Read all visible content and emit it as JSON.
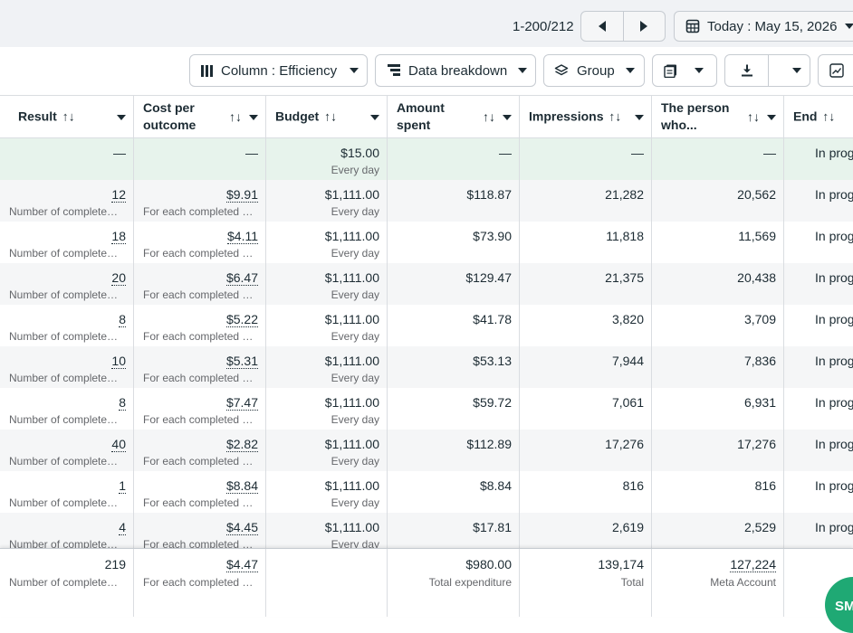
{
  "pager": {
    "range": "1-200/212"
  },
  "date": {
    "label": "Today : May 15, 2026"
  },
  "toolbar": {
    "columns_label": "Column : Efficiency",
    "breakdown_label": "Data breakdown",
    "group_label": "Group"
  },
  "columns": [
    {
      "title": "Result",
      "sort": "↑↓"
    },
    {
      "title": "Cost per outcome",
      "sort": "↑↓"
    },
    {
      "title": "Budget",
      "sort": "↑↓"
    },
    {
      "title": "Amount spent",
      "sort": "↑↓"
    },
    {
      "title": "Impressions",
      "sort": "↑↓"
    },
    {
      "title": "The person who...",
      "sort": "↑↓"
    },
    {
      "title": "End",
      "sort": "↑↓"
    }
  ],
  "rows": [
    {
      "result": "—",
      "result_sub": "",
      "cost": "—",
      "cost_sub": "",
      "budget": "$15.00",
      "budget_sub": "Every day",
      "spent": "—",
      "impressions": "—",
      "reach": "—",
      "end": "In progress",
      "highlight": true
    },
    {
      "result": "12",
      "result_sub": "Number of completed registrations",
      "cost": "$9.91",
      "cost_sub": "For each completed registration",
      "budget": "$1,111.00",
      "budget_sub": "Every day",
      "spent": "$118.87",
      "impressions": "21,282",
      "reach": "20,562",
      "end": "In progress"
    },
    {
      "result": "18",
      "result_sub": "Number of completed registrations",
      "cost": "$4.11",
      "cost_sub": "For each completed registration",
      "budget": "$1,111.00",
      "budget_sub": "Every day",
      "spent": "$73.90",
      "impressions": "11,818",
      "reach": "11,569",
      "end": "In progress"
    },
    {
      "result": "20",
      "result_sub": "Number of completed registrations",
      "cost": "$6.47",
      "cost_sub": "For each completed registration",
      "budget": "$1,111.00",
      "budget_sub": "Every day",
      "spent": "$129.47",
      "impressions": "21,375",
      "reach": "20,438",
      "end": "In progress"
    },
    {
      "result": "8",
      "result_sub": "Number of completed registrations",
      "cost": "$5.22",
      "cost_sub": "For each completed registration",
      "budget": "$1,111.00",
      "budget_sub": "Every day",
      "spent": "$41.78",
      "impressions": "3,820",
      "reach": "3,709",
      "end": "In progress"
    },
    {
      "result": "10",
      "result_sub": "Number of completed registrations",
      "cost": "$5.31",
      "cost_sub": "For each completed registration",
      "budget": "$1,111.00",
      "budget_sub": "Every day",
      "spent": "$53.13",
      "impressions": "7,944",
      "reach": "7,836",
      "end": "In progress"
    },
    {
      "result": "8",
      "result_sub": "Number of completed registrations",
      "cost": "$7.47",
      "cost_sub": "For each completed registration",
      "budget": "$1,111.00",
      "budget_sub": "Every day",
      "spent": "$59.72",
      "impressions": "7,061",
      "reach": "6,931",
      "end": "In progress"
    },
    {
      "result": "40",
      "result_sub": "Number of completed registrations",
      "cost": "$2.82",
      "cost_sub": "For each completed registration",
      "budget": "$1,111.00",
      "budget_sub": "Every day",
      "spent": "$112.89",
      "impressions": "17,276",
      "reach": "17,276",
      "end": "In progress"
    },
    {
      "result": "1",
      "result_sub": "Number of completed registrations",
      "cost": "$8.84",
      "cost_sub": "For each completed registration",
      "budget": "$1,111.00",
      "budget_sub": "Every day",
      "spent": "$8.84",
      "impressions": "816",
      "reach": "816",
      "end": "In progress"
    },
    {
      "result": "4",
      "result_sub": "Number of completed registrations",
      "cost": "$4.45",
      "cost_sub": "For each completed registration",
      "budget": "$1,111.00",
      "budget_sub": "Every day",
      "spent": "$17.81",
      "impressions": "2,619",
      "reach": "2,529",
      "end": "In progress"
    }
  ],
  "totals": {
    "result": "219",
    "result_sub": "Number of completed registrations",
    "cost": "$4.47",
    "cost_sub": "For each completed registration",
    "spent": "$980.00",
    "spent_sub": "Total expenditure",
    "impressions": "139,174",
    "impressions_sub": "Total",
    "reach": "127,224",
    "reach_sub": "Meta Account"
  },
  "fab": {
    "label": "SM"
  },
  "colors": {
    "highlight_row": "#e7f3ec",
    "stripe_row": "#f5f6f7",
    "border": "#dadde1"
  }
}
